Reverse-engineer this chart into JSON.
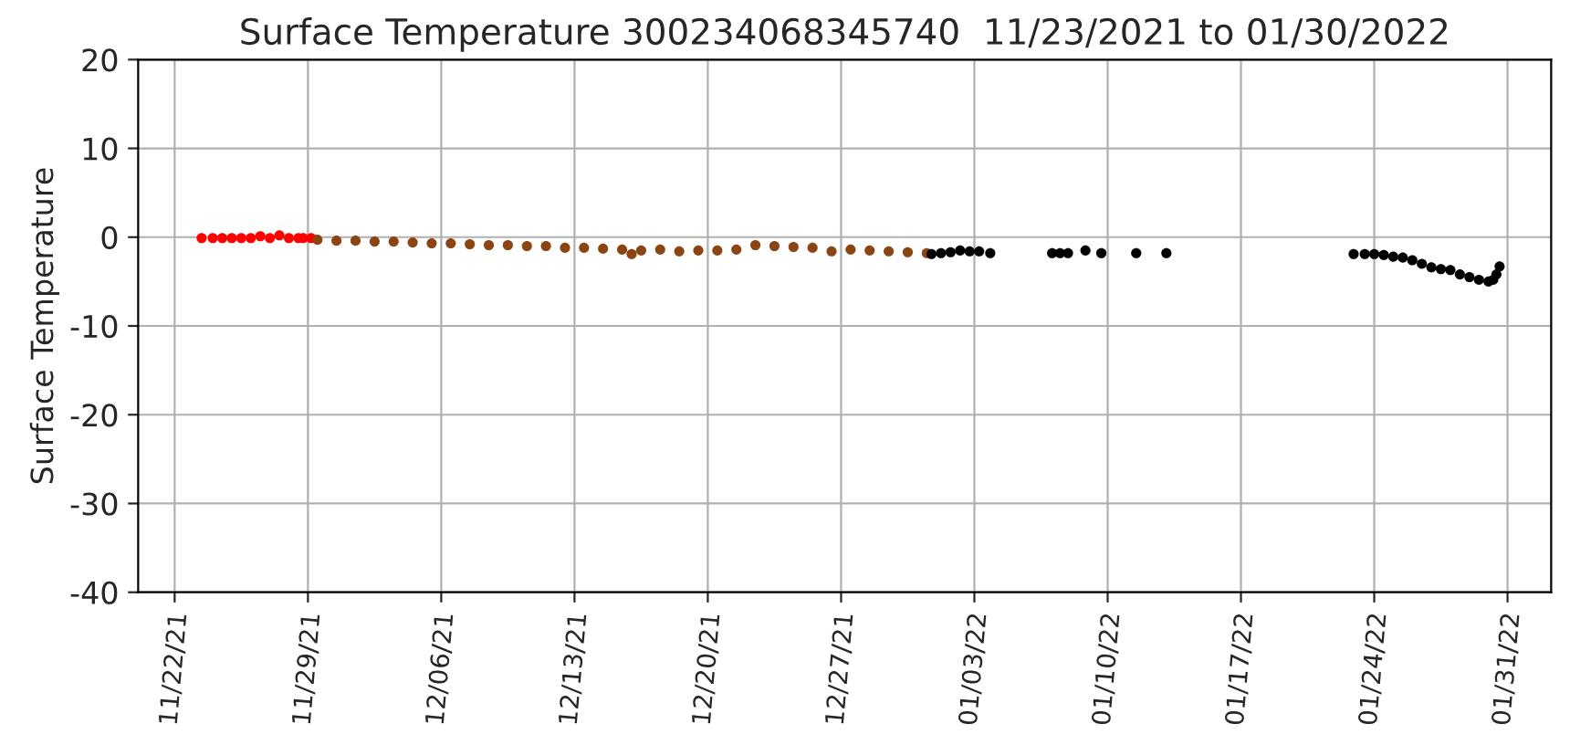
{
  "chart_data": {
    "type": "scatter",
    "title": "Surface Temperature 300234068345740  11/23/2021 to 01/30/2022",
    "ylabel": "Surface Temperature",
    "xlim": [
      "2021-11-20T02:00",
      "2022-02-02T07:00"
    ],
    "ylim": [
      -40,
      20
    ],
    "yticks": [
      -40,
      -30,
      -20,
      -10,
      0,
      10,
      20
    ],
    "xticks": [
      {
        "value": "2021-11-22",
        "label": "11/22/21"
      },
      {
        "value": "2021-11-29",
        "label": "11/29/21"
      },
      {
        "value": "2021-12-06",
        "label": "12/06/21"
      },
      {
        "value": "2021-12-13",
        "label": "12/13/21"
      },
      {
        "value": "2021-12-20",
        "label": "12/20/21"
      },
      {
        "value": "2021-12-27",
        "label": "12/27/21"
      },
      {
        "value": "2022-01-03",
        "label": "01/03/22"
      },
      {
        "value": "2022-01-10",
        "label": "01/10/22"
      },
      {
        "value": "2022-01-17",
        "label": "01/17/22"
      },
      {
        "value": "2022-01-24",
        "label": "01/24/22"
      },
      {
        "value": "2022-01-31",
        "label": "01/31/22"
      }
    ],
    "grid": true,
    "marker": "circle",
    "series": [
      {
        "color": "#ff0000",
        "x": [
          "2021-11-23T10:00",
          "2021-11-24T00:00",
          "2021-11-24T12:00",
          "2021-11-25T00:00",
          "2021-11-25T12:00",
          "2021-11-26T00:00",
          "2021-11-26T12:00",
          "2021-11-27T00:00",
          "2021-11-27T12:00",
          "2021-11-28T00:00",
          "2021-11-28T12:00",
          "2021-11-28T18:00",
          "2021-11-29T04:00"
        ],
        "values": [
          -0.1,
          -0.1,
          -0.1,
          -0.1,
          -0.1,
          -0.1,
          0.1,
          -0.1,
          0.2,
          -0.1,
          -0.1,
          -0.1,
          -0.1
        ]
      },
      {
        "color": "#8b4513",
        "x": [
          "2021-11-29T12:00",
          "2021-11-30T12:00",
          "2021-12-01T12:00",
          "2021-12-02T12:00",
          "2021-12-03T12:00",
          "2021-12-04T12:00",
          "2021-12-05T12:00",
          "2021-12-06T12:00",
          "2021-12-07T12:00",
          "2021-12-08T12:00",
          "2021-12-09T12:00",
          "2021-12-10T12:00",
          "2021-12-11T12:00",
          "2021-12-12T12:00",
          "2021-12-13T12:00",
          "2021-12-14T12:00",
          "2021-12-15T12:00",
          "2021-12-16T00:00",
          "2021-12-16T12:00",
          "2021-12-17T12:00",
          "2021-12-18T12:00",
          "2021-12-19T12:00",
          "2021-12-20T12:00",
          "2021-12-21T12:00",
          "2021-12-22T12:00",
          "2021-12-23T12:00",
          "2021-12-24T12:00",
          "2021-12-25T12:00",
          "2021-12-26T12:00",
          "2021-12-27T12:00",
          "2021-12-28T12:00",
          "2021-12-29T12:00",
          "2021-12-30T12:00",
          "2021-12-31T12:00"
        ],
        "values": [
          -0.3,
          -0.4,
          -0.4,
          -0.5,
          -0.5,
          -0.6,
          -0.7,
          -0.7,
          -0.8,
          -0.9,
          -0.9,
          -1.0,
          -1.0,
          -1.2,
          -1.2,
          -1.3,
          -1.4,
          -1.9,
          -1.5,
          -1.4,
          -1.6,
          -1.5,
          -1.5,
          -1.4,
          -0.9,
          -1.0,
          -1.1,
          -1.2,
          -1.6,
          -1.4,
          -1.5,
          -1.6,
          -1.7,
          -1.8
        ]
      },
      {
        "color": "#000000",
        "x": [
          "2021-12-31T18:00",
          "2022-01-01T06:00",
          "2022-01-01T18:00",
          "2022-01-02T06:00",
          "2022-01-02T18:00",
          "2022-01-03T06:00",
          "2022-01-03T20:00",
          "2022-01-07T02:00",
          "2022-01-07T12:00",
          "2022-01-07T22:00",
          "2022-01-08T20:00",
          "2022-01-09T16:00",
          "2022-01-11T12:00",
          "2022-01-13T02:00",
          "2022-01-22T22:00",
          "2022-01-23T12:00",
          "2022-01-24T00:00",
          "2022-01-24T12:00",
          "2022-01-25T00:00",
          "2022-01-25T12:00",
          "2022-01-26T00:00",
          "2022-01-26T12:00",
          "2022-01-27T00:00",
          "2022-01-27T12:00",
          "2022-01-28T00:00",
          "2022-01-28T12:00",
          "2022-01-29T00:00",
          "2022-01-29T12:00",
          "2022-01-30T00:00",
          "2022-01-30T06:00",
          "2022-01-30T10:00",
          "2022-01-30T14:00"
        ],
        "values": [
          -1.9,
          -1.8,
          -1.7,
          -1.5,
          -1.6,
          -1.6,
          -1.8,
          -1.8,
          -1.8,
          -1.8,
          -1.5,
          -1.8,
          -1.8,
          -1.8,
          -1.9,
          -1.9,
          -1.9,
          -2.0,
          -2.2,
          -2.3,
          -2.6,
          -3.0,
          -3.4,
          -3.6,
          -3.7,
          -4.2,
          -4.5,
          -4.8,
          -5.0,
          -4.8,
          -4.2,
          -3.3
        ]
      }
    ]
  }
}
